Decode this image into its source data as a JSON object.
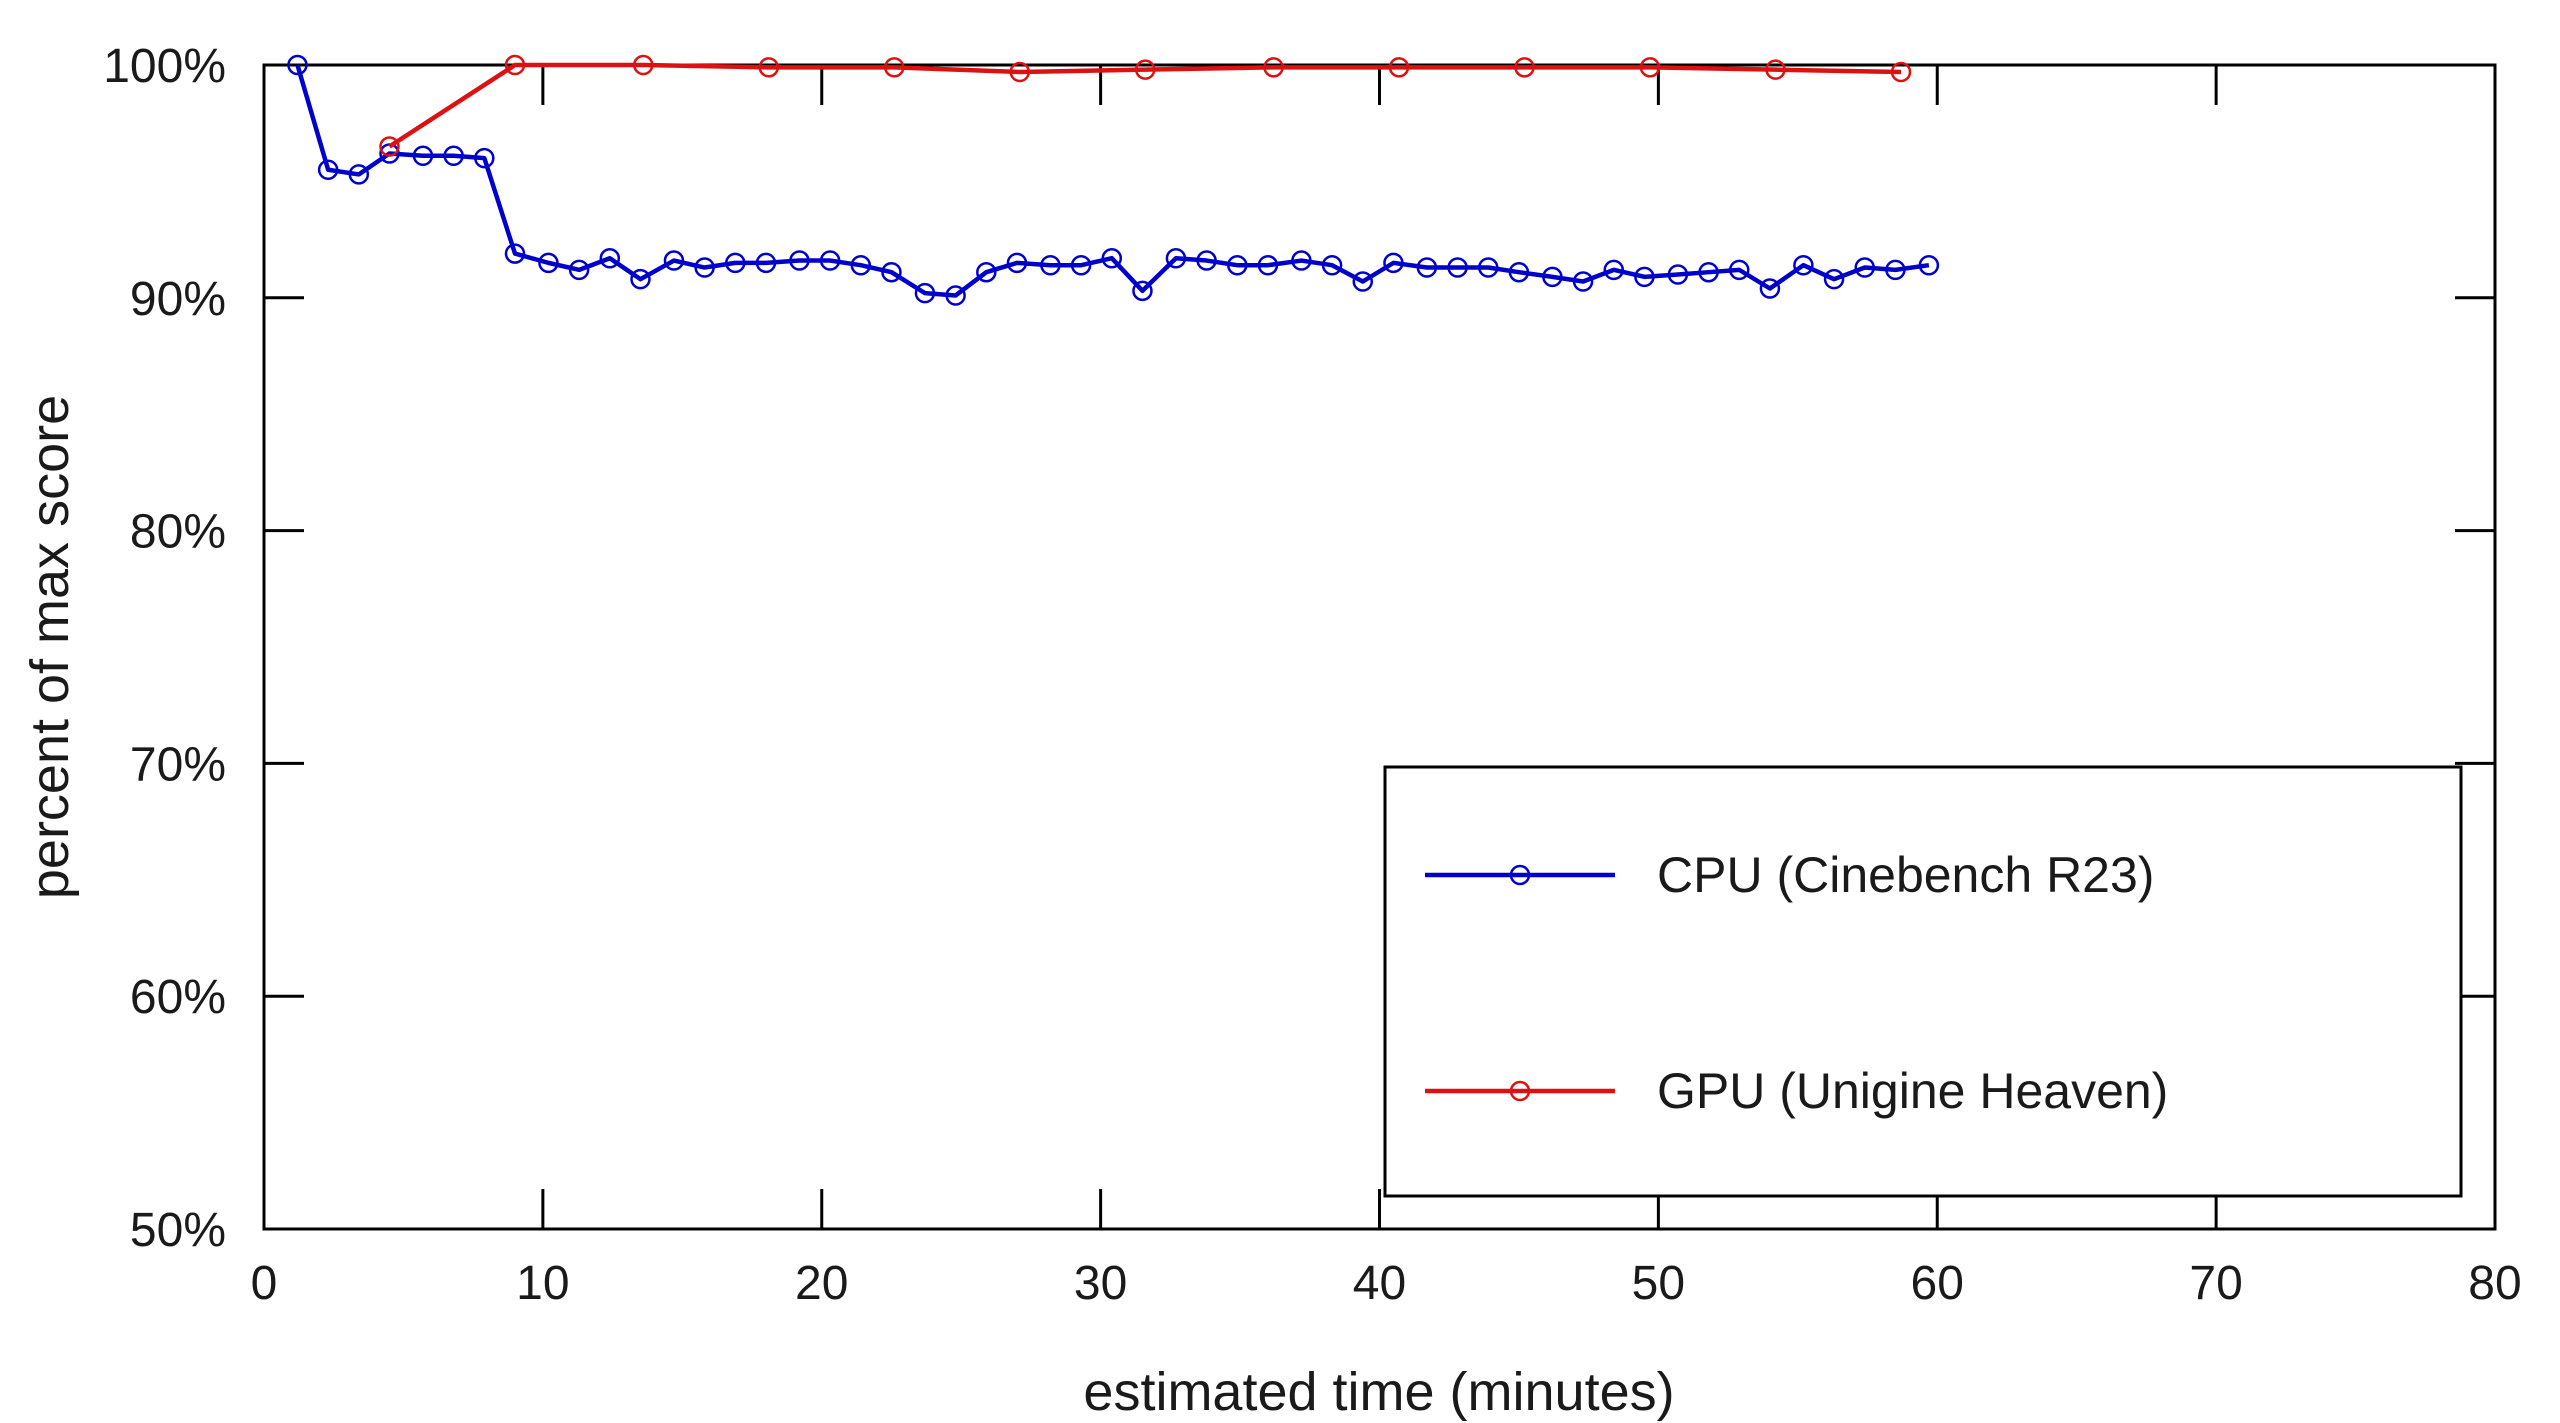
{
  "chart_data": {
    "type": "line",
    "title": "",
    "xlabel": "estimated time (minutes)",
    "ylabel": "percent of max score",
    "xlim": [
      0,
      80
    ],
    "ylim": [
      50,
      100
    ],
    "xticks": [
      0,
      10,
      20,
      30,
      40,
      50,
      60,
      70,
      80
    ],
    "xtick_labels": [
      "0",
      "10",
      "20",
      "30",
      "40",
      "50",
      "60",
      "70",
      "80"
    ],
    "yticks": [
      50,
      60,
      70,
      80,
      90,
      100
    ],
    "ytick_labels": [
      "50%",
      "60%",
      "70%",
      "80%",
      "90%",
      "100%"
    ],
    "grid": false,
    "legend_position": "bottom-right",
    "series": [
      {
        "name": "CPU (Cinebench R23)",
        "color": "#0000cc",
        "marker": "open-circle",
        "x": [
          1.2,
          2.3,
          3.4,
          4.5,
          5.7,
          6.8,
          7.9,
          9.0,
          10.2,
          11.3,
          12.4,
          13.5,
          14.7,
          15.8,
          16.9,
          18.0,
          19.2,
          20.3,
          21.4,
          22.5,
          23.7,
          24.8,
          25.9,
          27.0,
          28.2,
          29.3,
          30.4,
          31.5,
          32.7,
          33.8,
          34.9,
          36.0,
          37.2,
          38.3,
          39.4,
          40.5,
          41.7,
          42.8,
          43.9,
          45.0,
          46.2,
          47.3,
          48.4,
          49.5,
          50.7,
          51.8,
          52.9,
          54.0,
          55.2,
          56.3,
          57.4,
          58.5,
          59.7
        ],
        "y": [
          100,
          95.5,
          95.3,
          96.2,
          96.1,
          96.1,
          96.0,
          91.9,
          91.5,
          91.2,
          91.7,
          90.8,
          91.6,
          91.3,
          91.5,
          91.5,
          91.6,
          91.6,
          91.4,
          91.1,
          90.2,
          90.1,
          91.1,
          91.5,
          91.4,
          91.4,
          91.7,
          90.3,
          91.7,
          91.6,
          91.4,
          91.4,
          91.6,
          91.4,
          90.7,
          91.5,
          91.3,
          91.3,
          91.3,
          91.1,
          90.9,
          90.7,
          91.2,
          90.9,
          91.0,
          91.1,
          91.2,
          90.4,
          91.4,
          90.8,
          91.3,
          91.2,
          91.4
        ]
      },
      {
        "name": "GPU (Unigine Heaven)",
        "color": "#dd1111",
        "marker": "open-circle",
        "x": [
          4.5,
          9.0,
          13.6,
          18.1,
          22.6,
          27.1,
          31.6,
          36.2,
          40.7,
          45.2,
          49.7,
          54.2,
          58.7
        ],
        "y": [
          96.5,
          100,
          100,
          99.9,
          99.9,
          99.7,
          99.8,
          99.9,
          99.9,
          99.9,
          99.9,
          99.8,
          99.7
        ]
      }
    ]
  }
}
